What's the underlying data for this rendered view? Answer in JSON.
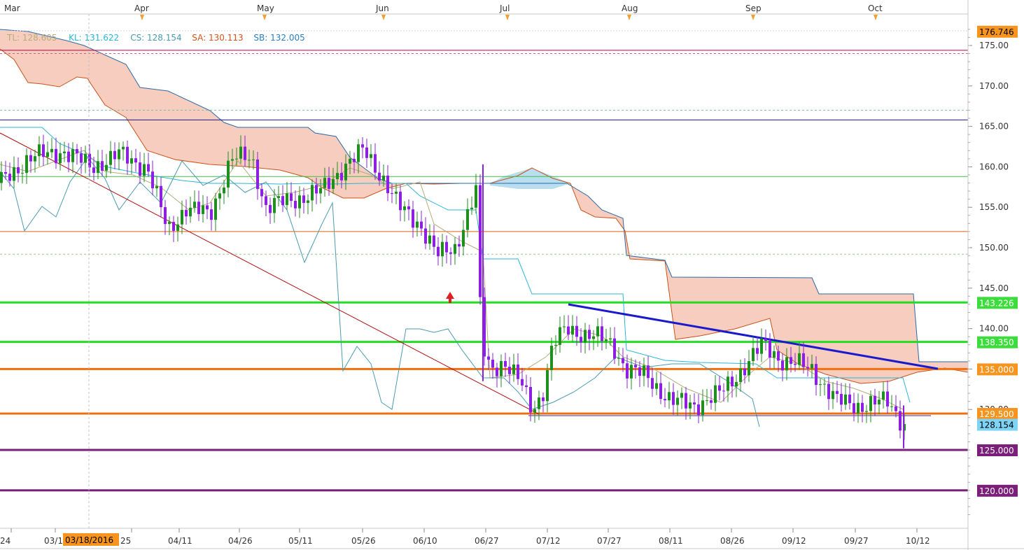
{
  "chart_data": {
    "type": "candlestick",
    "top_months": [
      "Mar",
      "Apr",
      "May",
      "Jun",
      "Jul",
      "Aug",
      "Sep",
      "Oct"
    ],
    "x_date_labels": [
      "24",
      "03/1",
      "25",
      "04/11",
      "04/26",
      "05/11",
      "05/26",
      "06/10",
      "06/27",
      "07/12",
      "07/27",
      "08/11",
      "08/26",
      "09/12",
      "09/27",
      "10/12"
    ],
    "crosshair_date": "03/18/2016",
    "ylim": [
      115,
      178
    ],
    "y_ticks": [
      "175.00",
      "170.00",
      "165.00",
      "160.00",
      "155.00",
      "150.00",
      "145.00",
      "140.00",
      "135.00",
      "130.00"
    ],
    "legend": [
      {
        "label": "TL: 128.605",
        "color": "#b5ad7a"
      },
      {
        "label": "KL: 131.622",
        "color": "#29b6d6"
      },
      {
        "label": "CS: 128.154",
        "color": "#4a9bb0"
      },
      {
        "label": "SA: 130.113",
        "color": "#d2541a"
      },
      {
        "label": "SB: 132.005",
        "color": "#2a7fc1"
      }
    ],
    "price_tags": [
      {
        "label": "176.746",
        "value": 176.746,
        "bg": "#f7941d",
        "fg": "#000000"
      },
      {
        "label": "143.226",
        "value": 143.226,
        "bg": "#3ddc3d",
        "fg": "#ffffff"
      },
      {
        "label": "138.350",
        "value": 138.35,
        "bg": "#3ddc3d",
        "fg": "#ffffff"
      },
      {
        "label": "135.000",
        "value": 135.0,
        "bg": "#f7941d",
        "fg": "#ffffff"
      },
      {
        "label": "129.500",
        "value": 129.5,
        "bg": "#f7941d",
        "fg": "#ffffff"
      },
      {
        "label": "128.154",
        "value": 128.154,
        "bg": "#7fd3f7",
        "fg": "#000000"
      },
      {
        "label": "125.000",
        "value": 125.0,
        "bg": "#7b1f7b",
        "fg": "#ffffff"
      },
      {
        "label": "120.000",
        "value": 120.0,
        "bg": "#7b1f7b",
        "fg": "#ffffff"
      }
    ],
    "horizontal_lines": [
      {
        "value": 174.4,
        "color": "#c00040",
        "width": 1,
        "dash": false
      },
      {
        "value": 174.0,
        "color": "#d06080",
        "width": 1,
        "dash": true
      },
      {
        "value": 167.0,
        "color": "#80c0a0",
        "width": 1,
        "dash": true
      },
      {
        "value": 165.8,
        "color": "#1a1a80",
        "width": 1,
        "dash": false
      },
      {
        "value": 158.8,
        "color": "#40c040",
        "width": 1,
        "dash": false
      },
      {
        "value": 152.0,
        "color": "#e06010",
        "width": 1,
        "dash": false
      },
      {
        "value": 149.2,
        "color": "#a0c090",
        "width": 1,
        "dash": true
      },
      {
        "value": 143.226,
        "color": "#22dd22",
        "width": 3,
        "dash": false
      },
      {
        "value": 138.35,
        "color": "#22dd22",
        "width": 3,
        "dash": false
      },
      {
        "value": 135.0,
        "color": "#f26f10",
        "width": 3,
        "dash": false
      },
      {
        "value": 129.5,
        "color": "#f26f10",
        "width": 3,
        "dash": false
      },
      {
        "value": 125.0,
        "color": "#7b1f7b",
        "width": 3,
        "dash": false
      },
      {
        "value": 120.0,
        "color": "#7b1f7b",
        "width": 3,
        "dash": false
      }
    ],
    "colors": {
      "bull_candle": "#1f8f1f",
      "bear_candle": "#8c1fe0",
      "cloud_bear": "#f6cdbf",
      "cloud_bull": "#b8def0",
      "downtrend_red": "#b01010",
      "downtrend_blue": "#1a1acc",
      "crosshair_tag": "#f7941d",
      "arrow": "#e02020"
    }
  }
}
